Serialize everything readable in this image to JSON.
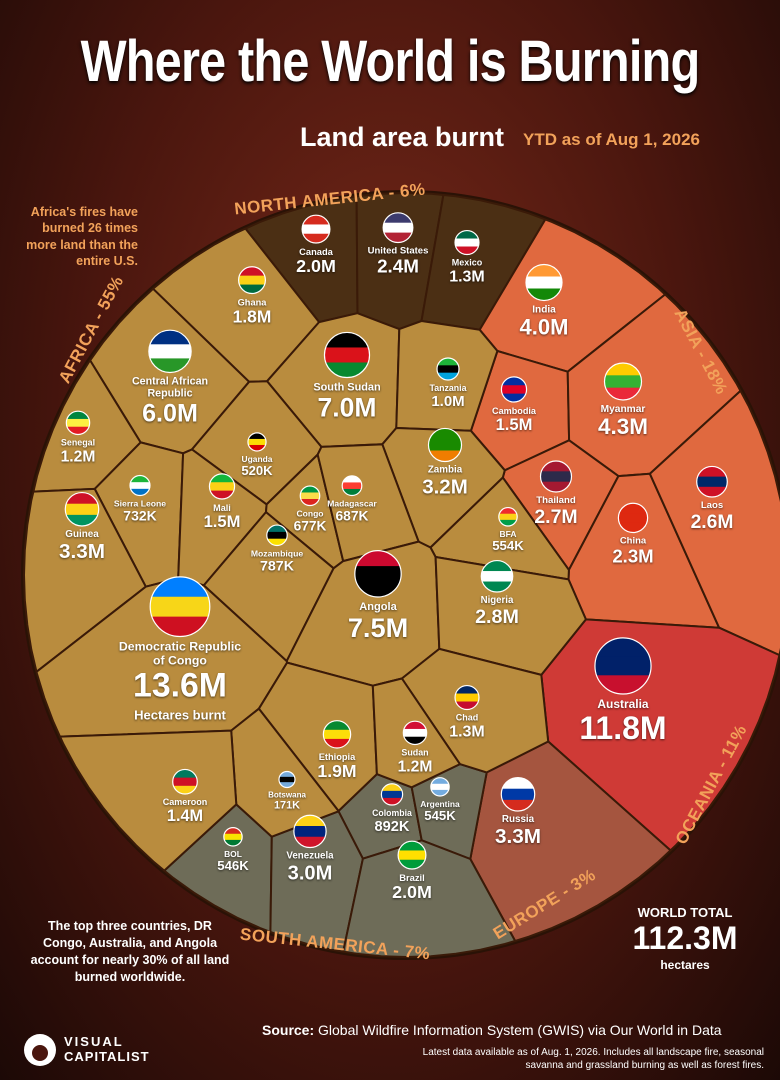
{
  "chart_data": {
    "type": "voronoi",
    "title": "Where the World is Burning",
    "subtitle": "Land area burnt",
    "subtitle_note": "YTD as of Aug 1, 2026",
    "unit_label": "Hectares burnt",
    "annotation_left": "Africa's fires have burned 26 times more land than the entire U.S.",
    "annotation_bottom": "The top three countries, DR Congo, Australia, and Angola account for nearly 30% of all land burned worldwide.",
    "total_label": "WORLD TOTAL",
    "total_value": "112.3M",
    "total_unit": "hectares",
    "source_label": "Source:",
    "source": "Global Wildfire Information System (GWIS) via Our World in Data",
    "footnote": "Latest data available as of Aug. 1, 2026. Includes all landscape fire, seasonal savanna and grassland burning as well as forest fires.",
    "logo_top": "VISUAL",
    "logo_bottom": "CAPITALIST",
    "regions": [
      {
        "name": "NORTH AMERICA - 6%",
        "color": "#4b2f14"
      },
      {
        "name": "ASIA - 18%",
        "color": "#e0693f"
      },
      {
        "name": "OCEANIA - 11%",
        "color": "#cf3a36"
      },
      {
        "name": "EUROPE - 3%",
        "color": "#a5553f"
      },
      {
        "name": "SOUTH AMERICA - 7%",
        "color": "#6e6c58"
      },
      {
        "name": "AFRICA - 55%",
        "color": "#b98c3e"
      }
    ],
    "countries": [
      {
        "name": "Canada",
        "region": 0,
        "value": 2000000,
        "value_label": "2.0M"
      },
      {
        "name": "United States",
        "region": 0,
        "value": 2400000,
        "value_label": "2.4M"
      },
      {
        "name": "Mexico",
        "region": 0,
        "value": 1300000,
        "value_label": "1.3M"
      },
      {
        "name": "India",
        "region": 1,
        "value": 4000000,
        "value_label": "4.0M"
      },
      {
        "name": "Cambodia",
        "region": 1,
        "value": 1500000,
        "value_label": "1.5M"
      },
      {
        "name": "Myanmar",
        "region": 1,
        "value": 4300000,
        "value_label": "4.3M"
      },
      {
        "name": "Thailand",
        "region": 1,
        "value": 2700000,
        "value_label": "2.7M"
      },
      {
        "name": "China",
        "region": 1,
        "value": 2300000,
        "value_label": "2.3M"
      },
      {
        "name": "Laos",
        "region": 1,
        "value": 2600000,
        "value_label": "2.6M"
      },
      {
        "name": "Australia",
        "region": 2,
        "value": 11800000,
        "value_label": "11.8M"
      },
      {
        "name": "Russia",
        "region": 3,
        "value": 3300000,
        "value_label": "3.3M"
      },
      {
        "name": "Colombia",
        "region": 4,
        "value": 892000,
        "value_label": "892K"
      },
      {
        "name": "Argentina",
        "region": 4,
        "value": 545000,
        "value_label": "545K"
      },
      {
        "name": "BOL",
        "region": 4,
        "value": 546000,
        "value_label": "546K"
      },
      {
        "name": "Venezuela",
        "region": 4,
        "value": 3000000,
        "value_label": "3.0M"
      },
      {
        "name": "Brazil",
        "region": 4,
        "value": 2000000,
        "value_label": "2.0M"
      },
      {
        "name": "Ghana",
        "region": 5,
        "value": 1800000,
        "value_label": "1.8M"
      },
      {
        "name": "Central African Republic",
        "region": 5,
        "value": 6000000,
        "value_label": "6.0M"
      },
      {
        "name": "South Sudan",
        "region": 5,
        "value": 7000000,
        "value_label": "7.0M"
      },
      {
        "name": "Tanzania",
        "region": 5,
        "value": 1000000,
        "value_label": "1.0M"
      },
      {
        "name": "Senegal",
        "region": 5,
        "value": 1200000,
        "value_label": "1.2M"
      },
      {
        "name": "Uganda",
        "region": 5,
        "value": 520000,
        "value_label": "520K"
      },
      {
        "name": "Zambia",
        "region": 5,
        "value": 3200000,
        "value_label": "3.2M"
      },
      {
        "name": "Sierra Leone",
        "region": 5,
        "value": 732000,
        "value_label": "732K"
      },
      {
        "name": "Mali",
        "region": 5,
        "value": 1500000,
        "value_label": "1.5M"
      },
      {
        "name": "Congo",
        "region": 5,
        "value": 677000,
        "value_label": "677K"
      },
      {
        "name": "Madagascar",
        "region": 5,
        "value": 687000,
        "value_label": "687K"
      },
      {
        "name": "BFA",
        "region": 5,
        "value": 554000,
        "value_label": "554K"
      },
      {
        "name": "Guinea",
        "region": 5,
        "value": 3300000,
        "value_label": "3.3M"
      },
      {
        "name": "Mozambique",
        "region": 5,
        "value": 787000,
        "value_label": "787K"
      },
      {
        "name": "Angola",
        "region": 5,
        "value": 7500000,
        "value_label": "7.5M"
      },
      {
        "name": "Nigeria",
        "region": 5,
        "value": 2800000,
        "value_label": "2.8M"
      },
      {
        "name": "Democratic Republic of Congo",
        "region": 5,
        "value": 13600000,
        "value_label": "13.6M"
      },
      {
        "name": "Chad",
        "region": 5,
        "value": 1300000,
        "value_label": "1.3M"
      },
      {
        "name": "Ethiopia",
        "region": 5,
        "value": 1900000,
        "value_label": "1.9M"
      },
      {
        "name": "Sudan",
        "region": 5,
        "value": 1200000,
        "value_label": "1.2M"
      },
      {
        "name": "Botswana",
        "region": 5,
        "value": 171000,
        "value_label": "171K"
      },
      {
        "name": "Cameroon",
        "region": 5,
        "value": 1400000,
        "value_label": "1.4M"
      }
    ]
  }
}
